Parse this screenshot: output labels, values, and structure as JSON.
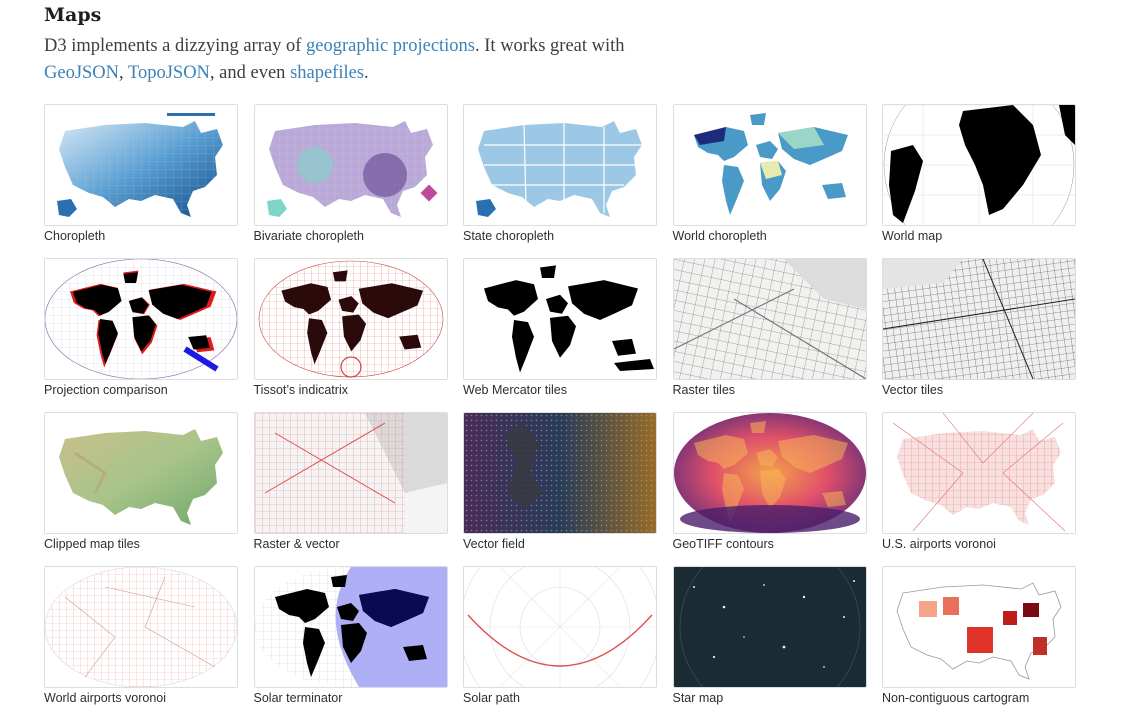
{
  "section": {
    "title": "Maps",
    "intro_part1": "D3 implements a dizzying array of ",
    "link_projections": "geographic projections",
    "intro_part2": ". It works great with",
    "link_geojson": "GeoJSON",
    "sep1": ", ",
    "link_topojson": "TopoJSON",
    "intro_part3": ", and even ",
    "link_shapefiles": "shapefiles",
    "intro_end": "."
  },
  "colors": {
    "link": "#3b82b6",
    "heading": "#1b1e23",
    "thumb_border": "#dcdde0"
  },
  "gallery": [
    {
      "label": "Choropleth",
      "icon": "us-choropleth-map"
    },
    {
      "label": "Bivariate choropleth",
      "icon": "us-bivariate-map"
    },
    {
      "label": "State choropleth",
      "icon": "us-state-map"
    },
    {
      "label": "World choropleth",
      "icon": "world-choropleth-map"
    },
    {
      "label": "World map",
      "icon": "orthographic-globe-map"
    },
    {
      "label": "Projection comparison",
      "icon": "projection-comparison-map"
    },
    {
      "label": "Tissot’s indicatrix",
      "icon": "tissot-indicatrix-map"
    },
    {
      "label": "Web Mercator tiles",
      "icon": "mercator-world-map"
    },
    {
      "label": "Raster tiles",
      "icon": "street-raster-map"
    },
    {
      "label": "Vector tiles",
      "icon": "street-vector-map"
    },
    {
      "label": "Clipped map tiles",
      "icon": "terrain-map"
    },
    {
      "label": "Raster & vector",
      "icon": "raster-vector-map"
    },
    {
      "label": "Vector field",
      "icon": "vector-field-map"
    },
    {
      "label": "GeoTIFF contours",
      "icon": "geotiff-contours-map"
    },
    {
      "label": "U.S. airports voronoi",
      "icon": "us-voronoi-map"
    },
    {
      "label": "World airports voronoi",
      "icon": "world-voronoi-map"
    },
    {
      "label": "Solar terminator",
      "icon": "solar-terminator-map"
    },
    {
      "label": "Solar path",
      "icon": "solar-path-chart"
    },
    {
      "label": "Star map",
      "icon": "star-map"
    },
    {
      "label": "Non-contiguous cartogram",
      "icon": "cartogram-map"
    }
  ]
}
